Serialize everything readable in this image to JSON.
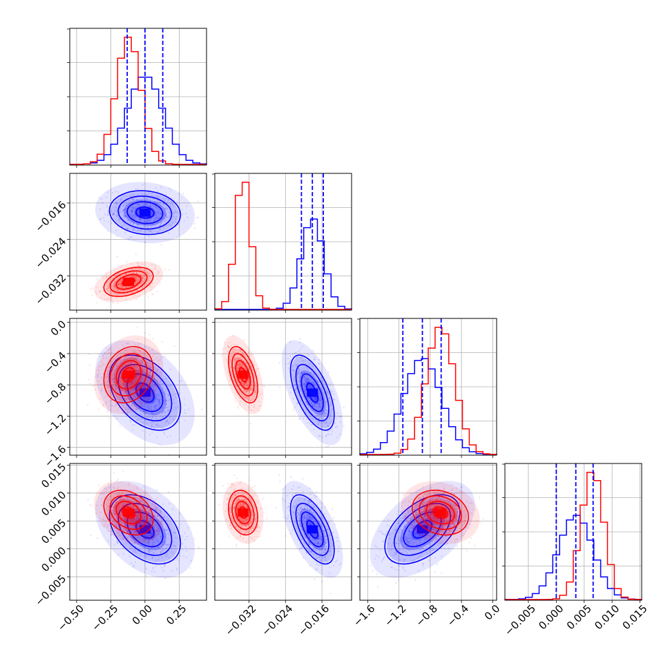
{
  "chart_data": {
    "type": "corner",
    "grid": true,
    "series_colors": {
      "blue": "#0000ff",
      "red": "#ff0000"
    },
    "parameters": [
      {
        "range": [
          -0.55,
          0.45
        ],
        "ticks": [
          -0.5,
          -0.25,
          0.0,
          0.25
        ],
        "tick_labels": [
          "−0.50",
          "−0.25",
          "0.00",
          "0.25"
        ],
        "quantiles_blue": [
          -0.13,
          0.0,
          0.13
        ]
      },
      {
        "range": [
          -0.0395,
          -0.0095
        ],
        "ticks": [
          -0.032,
          -0.024,
          -0.016
        ],
        "tick_labels": [
          "−0.032",
          "−0.024",
          "−0.016"
        ],
        "quantiles_blue": [
          -0.0205,
          -0.0181,
          -0.0157
        ]
      },
      {
        "range": [
          -1.7,
          0.05
        ],
        "ticks": [
          -1.6,
          -1.2,
          -0.8,
          -0.4,
          0.0
        ],
        "tick_labels": [
          "−1.6",
          "−1.2",
          "−0.8",
          "−0.4",
          "0.0"
        ],
        "quantiles_blue": [
          -1.15,
          -0.9,
          -0.66
        ]
      },
      {
        "range": [
          -0.0092,
          0.0153
        ],
        "ticks": [
          -0.005,
          0.0,
          0.005,
          0.01,
          0.015
        ],
        "tick_labels": [
          "−0.005",
          "0.000",
          "0.005",
          "0.010",
          "0.015"
        ],
        "quantiles_blue": [
          0.0,
          0.0035,
          0.0066
        ]
      }
    ],
    "series": [
      {
        "color": "blue",
        "mean": [
          0.0,
          -0.0181,
          -0.9,
          0.0035
        ],
        "sd": [
          0.13,
          0.0024,
          0.24,
          0.0031
        ],
        "corr": [
          [
            1,
            -0.1,
            -0.4,
            -0.4
          ],
          [
            -0.1,
            1,
            -0.6,
            -0.6
          ],
          [
            -0.4,
            -0.6,
            1,
            0.5
          ],
          [
            -0.4,
            -0.6,
            0.5,
            1
          ]
        ]
      },
      {
        "color": "red",
        "mean": [
          -0.12,
          -0.0333,
          -0.67,
          0.0065
        ],
        "sd": [
          0.09,
          0.0016,
          0.18,
          0.002
        ],
        "corr": [
          [
            1,
            0.4,
            0.2,
            -0.3
          ],
          [
            0.4,
            1,
            -0.5,
            -0.2
          ],
          [
            0.2,
            -0.5,
            1,
            -0.2
          ],
          [
            -0.3,
            -0.2,
            -0.2,
            1
          ]
        ]
      }
    ]
  }
}
